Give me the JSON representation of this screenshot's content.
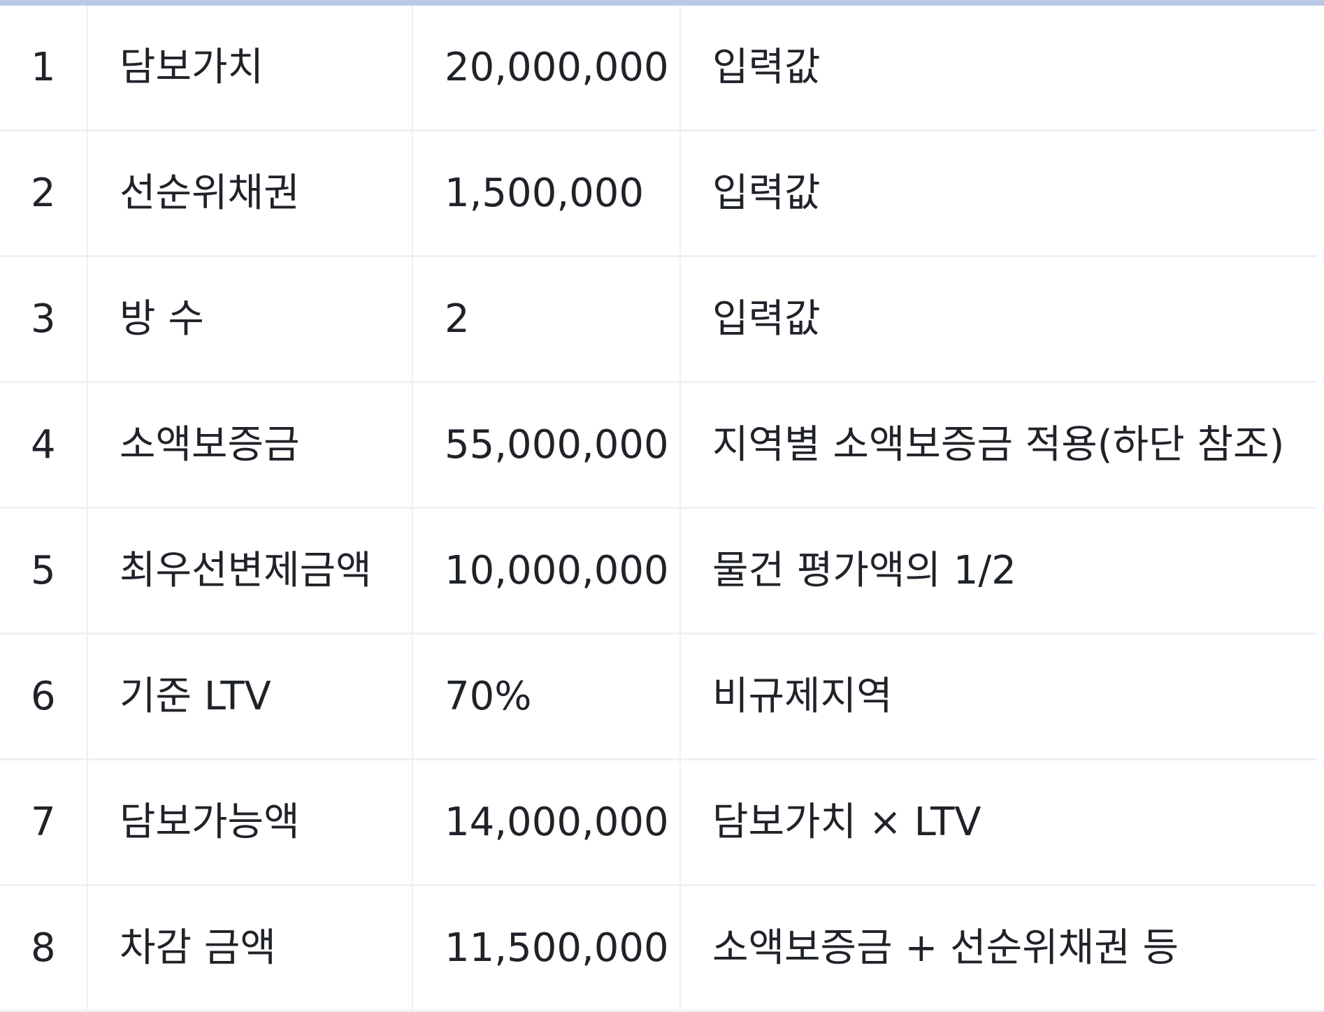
{
  "table": {
    "rows": [
      {
        "no": "1",
        "item": "담보가치",
        "value": "20,000,000",
        "note": "입력값"
      },
      {
        "no": "2",
        "item": "선순위채권",
        "value": "1,500,000",
        "note": "입력값"
      },
      {
        "no": "3",
        "item": "방 수",
        "value": "2",
        "note": "입력값"
      },
      {
        "no": "4",
        "item": "소액보증금",
        "value": "55,000,000",
        "note": "지역별 소액보증금 적용(하단 참조)"
      },
      {
        "no": "5",
        "item": "최우선변제금액",
        "value": "10,000,000",
        "note": "물건 평가액의 1/2"
      },
      {
        "no": "6",
        "item": "기준 LTV",
        "value": "70%",
        "note": "비규제지역"
      },
      {
        "no": "7",
        "item": "담보가능액",
        "value": "14,000,000",
        "note": "담보가치 × LTV"
      },
      {
        "no": "8",
        "item": "차감 금액",
        "value": "11,500,000",
        "note": "소액보증금 + 선순위채권 등"
      }
    ]
  },
  "colors": {
    "top_bar": "#b9c9e6",
    "border": "#eef0f5",
    "text": "#1f2329",
    "background": "#ffffff"
  }
}
